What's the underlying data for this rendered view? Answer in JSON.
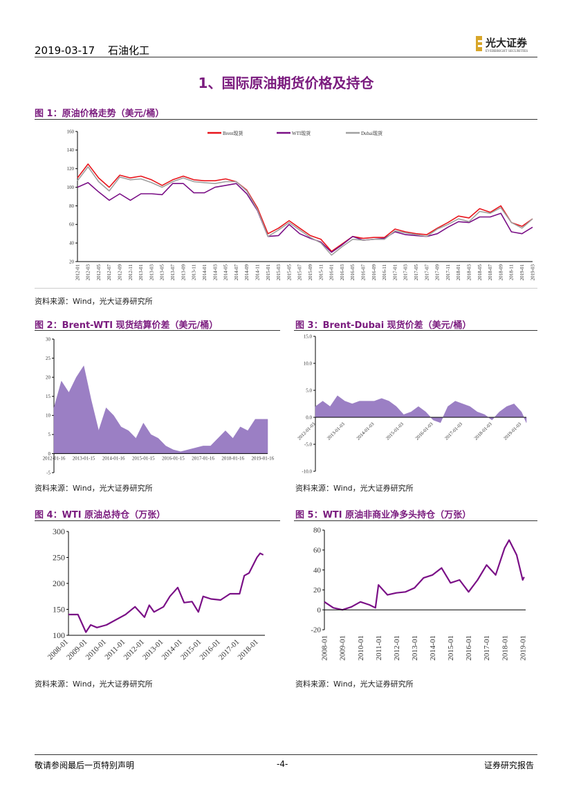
{
  "header": {
    "date": "2019-03-17",
    "sector": "石油化工",
    "logo_text": "光大证券",
    "logo_sub": "EVERBRIGHT SECURITIES"
  },
  "section_title": "1、国际原油期货价格及持仓",
  "colors": {
    "accent": "#7a1b7e",
    "brent": "#e8141b",
    "wti": "#7a0f86",
    "dubai": "#a0a0a0",
    "area": "#9b7fc4"
  },
  "figures": [
    {
      "caption": "图 1：原油价格走势（美元/桶）",
      "source": "资料来源：Wind，光大证券研究所"
    },
    {
      "caption": "图 2：Brent-WTI 现货结算价差（美元/桶）",
      "source": "资料来源：Wind，光大证券研究所"
    },
    {
      "caption": "图 3：Brent-Dubai 现货价差（美元/桶）",
      "source": "资料来源：Wind，光大证券研究所"
    },
    {
      "caption": "图 4：WTI 原油总持仓（万张）",
      "source": "资料来源：Wind，光大证券研究所"
    },
    {
      "caption": "图 5：WTI 原油非商业净多头持仓（万张）",
      "source": "资料来源：Wind，光大证券研究所"
    }
  ],
  "footer": {
    "left": "敬请参阅最后一页特别声明",
    "center": "-4-",
    "right": "证券研究报告"
  },
  "chart_data": [
    {
      "type": "line",
      "ylim": [
        20,
        160
      ],
      "yticks": [
        "20",
        "40",
        "60",
        "80",
        "100",
        "120",
        "140",
        "160"
      ],
      "xlim": [
        "2012-01",
        "2019-03"
      ],
      "xticks": [
        "2012-01",
        "2012-03",
        "2012-05",
        "2012-07",
        "2012-09",
        "2012-11",
        "2013-01",
        "2013-03",
        "2013-05",
        "2013-07",
        "2013-09",
        "2013-11",
        "2014-01",
        "2014-03",
        "2014-05",
        "2014-07",
        "2014-09",
        "2014-11",
        "2015-01",
        "2015-03",
        "2015-05",
        "2015-07",
        "2015-09",
        "2015-11",
        "2016-01",
        "2016-03",
        "2016-05",
        "2016-07",
        "2016-09",
        "2016-11",
        "2017-01",
        "2017-03",
        "2017-05",
        "2017-07",
        "2017-09",
        "2017-11",
        "2018-01",
        "2018-03",
        "2018-05",
        "2018-07",
        "2018-09",
        "2018-11",
        "2019-01",
        "2019-03"
      ],
      "legend": "top-center",
      "series": [
        {
          "name": "Brent现货",
          "color": "#e8141b",
          "values": [
            110,
            125,
            110,
            100,
            113,
            110,
            112,
            108,
            102,
            108,
            112,
            108,
            107,
            107,
            109,
            106,
            97,
            78,
            50,
            56,
            64,
            56,
            48,
            44,
            31,
            39,
            47,
            45,
            46,
            46,
            55,
            52,
            50,
            49,
            56,
            62,
            69,
            67,
            77,
            73,
            80,
            62,
            58,
            66
          ]
        },
        {
          "name": "WTI现货",
          "color": "#7a0f86",
          "values": [
            100,
            105,
            95,
            86,
            93,
            86,
            93,
            93,
            92,
            104,
            104,
            94,
            94,
            100,
            102,
            104,
            93,
            75,
            47,
            48,
            60,
            50,
            45,
            41,
            30,
            38,
            47,
            43,
            44,
            45,
            52,
            49,
            48,
            47,
            50,
            57,
            63,
            62,
            68,
            68,
            72,
            52,
            50,
            57
          ]
        },
        {
          "name": "Dubai现货",
          "color": "#a0a0a0",
          "values": [
            107,
            122,
            106,
            96,
            111,
            108,
            109,
            105,
            100,
            106,
            110,
            106,
            105,
            104,
            106,
            106,
            96,
            76,
            47,
            54,
            62,
            54,
            46,
            40,
            27,
            36,
            44,
            43,
            44,
            44,
            53,
            51,
            49,
            47,
            55,
            60,
            66,
            63,
            74,
            72,
            78,
            62,
            56,
            66
          ]
        }
      ]
    },
    {
      "type": "area",
      "ylim": [
        -5,
        30
      ],
      "yticks": [
        "-5",
        "0",
        "5",
        "10",
        "15",
        "20",
        "25",
        "30"
      ],
      "xlim": [
        "2012-01",
        "2019-03"
      ],
      "xticks": [
        "2012-01-16",
        "2013-01-15",
        "2014-01-16",
        "2015-01-15",
        "2016-01-15",
        "2017-01-16",
        "2018-01-16",
        "2019-01-16"
      ],
      "x": [
        "2012-01",
        "2012-04",
        "2012-07",
        "2012-10",
        "2013-01",
        "2013-04",
        "2013-07",
        "2013-10",
        "2014-01",
        "2014-04",
        "2014-07",
        "2014-10",
        "2015-01",
        "2015-04",
        "2015-07",
        "2015-10",
        "2016-01",
        "2016-04",
        "2016-07",
        "2016-10",
        "2017-01",
        "2017-04",
        "2017-07",
        "2017-10",
        "2018-01",
        "2018-04",
        "2018-07",
        "2018-10",
        "2019-01",
        "2019-03"
      ],
      "values": [
        12,
        19,
        16,
        20,
        23,
        14,
        6,
        12,
        10,
        7,
        6,
        4,
        8,
        5,
        4,
        2,
        1,
        0.5,
        1,
        1.5,
        2,
        2,
        4,
        6,
        4,
        7,
        6,
        9,
        9,
        9
      ]
    },
    {
      "type": "area",
      "ylim": [
        -10,
        15
      ],
      "yticks": [
        "-10.0",
        "-5.0",
        "0.0",
        "5.0",
        "10.0",
        "15.0"
      ],
      "xlim": [
        "2012-01",
        "2019-03"
      ],
      "xticks": [
        "2012-01-03",
        "2013-01-03",
        "2014-01-03",
        "2015-01-03",
        "2016-01-03",
        "2017-01-03",
        "2018-01-03",
        "2019-01-03"
      ],
      "x": [
        "2012-01",
        "2012-04",
        "2012-07",
        "2012-10",
        "2013-01",
        "2013-04",
        "2013-07",
        "2013-10",
        "2014-01",
        "2014-04",
        "2014-07",
        "2014-10",
        "2015-01",
        "2015-04",
        "2015-07",
        "2015-10",
        "2016-01",
        "2016-04",
        "2016-07",
        "2016-10",
        "2017-01",
        "2017-04",
        "2017-07",
        "2017-10",
        "2018-01",
        "2018-04",
        "2018-07",
        "2018-10",
        "2019-01",
        "2019-03"
      ],
      "values": [
        2,
        3,
        2,
        4,
        3,
        2.5,
        3,
        3,
        3,
        3.5,
        3,
        2,
        0.5,
        1,
        2,
        1,
        -0.5,
        -1,
        2,
        3,
        2.5,
        2,
        1,
        0.5,
        -0.5,
        1,
        2,
        2.5,
        1,
        -1
      ]
    },
    {
      "type": "line",
      "ylim": [
        100,
        300
      ],
      "yticks": [
        "100",
        "150",
        "200",
        "250",
        "300"
      ],
      "xlim": [
        "2008-01",
        "2018-05"
      ],
      "xticks": [
        "2008-01",
        "2009-01",
        "2010-01",
        "2011-01",
        "2012-01",
        "2013-01",
        "2014-01",
        "2015-01",
        "2016-01",
        "2017-01",
        "2018-01"
      ],
      "series": [
        {
          "color": "#7a0f86",
          "x": [
            "2008-01",
            "2008-07",
            "2008-12",
            "2009-03",
            "2009-07",
            "2010-01",
            "2010-07",
            "2011-01",
            "2011-07",
            "2012-01",
            "2012-04",
            "2012-07",
            "2013-01",
            "2013-05",
            "2013-10",
            "2014-02",
            "2014-07",
            "2014-11",
            "2015-02",
            "2015-07",
            "2016-01",
            "2016-07",
            "2017-01",
            "2017-04",
            "2017-07",
            "2017-12",
            "2018-02",
            "2018-04"
          ],
          "values": [
            140,
            140,
            106,
            120,
            115,
            120,
            130,
            140,
            155,
            135,
            158,
            145,
            155,
            175,
            192,
            163,
            165,
            145,
            175,
            170,
            168,
            180,
            180,
            215,
            220,
            250,
            258,
            255
          ]
        }
      ]
    },
    {
      "type": "line",
      "ylim": [
        -20,
        80
      ],
      "yticks": [
        "-20",
        "0",
        "20",
        "40",
        "60",
        "80"
      ],
      "xlim": [
        "2008-01",
        "2019-03"
      ],
      "xticks": [
        "2008-01",
        "2009-01",
        "2010-01",
        "2011-01",
        "2012-01",
        "2013-01",
        "2014-01",
        "2015-01",
        "2016-01",
        "2017-01",
        "2018-01",
        "2019-01"
      ],
      "series": [
        {
          "color": "#7a0f86",
          "x": [
            "2008-01",
            "2008-07",
            "2009-01",
            "2009-07",
            "2010-01",
            "2010-07",
            "2010-11",
            "2011-01",
            "2011-07",
            "2012-01",
            "2012-07",
            "2013-01",
            "2013-07",
            "2014-01",
            "2014-07",
            "2015-01",
            "2015-07",
            "2016-01",
            "2016-07",
            "2017-01",
            "2017-07",
            "2018-01",
            "2018-04",
            "2018-09",
            "2019-01",
            "2019-02"
          ],
          "values": [
            8,
            2,
            0,
            3,
            8,
            5,
            2,
            25,
            15,
            17,
            18,
            22,
            32,
            35,
            42,
            27,
            30,
            18,
            30,
            45,
            35,
            62,
            70,
            55,
            30,
            33
          ]
        }
      ]
    }
  ]
}
